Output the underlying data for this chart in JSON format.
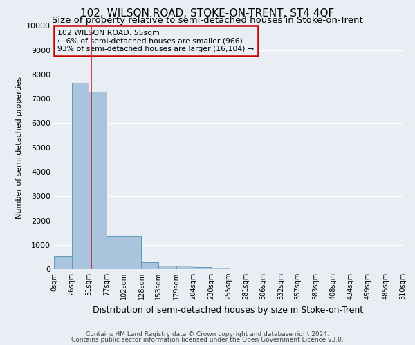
{
  "title": "102, WILSON ROAD, STOKE-ON-TRENT, ST4 4QF",
  "subtitle": "Size of property relative to semi-detached houses in Stoke-on-Trent",
  "xlabel": "Distribution of semi-detached houses by size in Stoke-on-Trent",
  "ylabel": "Number of semi-detached properties",
  "footer1": "Contains HM Land Registry data © Crown copyright and database right 2024.",
  "footer2": "Contains public sector information licensed under the Open Government Licence v3.0.",
  "bin_edges": [
    0,
    26,
    51,
    77,
    102,
    128,
    153,
    179,
    204,
    230,
    255,
    281,
    306,
    332,
    357,
    383,
    408,
    434,
    459,
    485,
    510
  ],
  "bar_heights": [
    550,
    7650,
    7300,
    1350,
    1350,
    280,
    150,
    130,
    80,
    70,
    0,
    0,
    0,
    0,
    0,
    0,
    0,
    0,
    0,
    0
  ],
  "bar_color": "#aac4de",
  "bar_edge_color": "#5a9bbf",
  "property_size": 55,
  "property_line_color": "#cc2222",
  "annotation_text_line1": "102 WILSON ROAD: 55sqm",
  "annotation_text_line2": "← 6% of semi-detached houses are smaller (966)",
  "annotation_text_line3": "93% of semi-detached houses are larger (16,104) →",
  "annotation_box_color": "#cc0000",
  "ylim": [
    0,
    10000
  ],
  "yticks": [
    0,
    1000,
    2000,
    3000,
    4000,
    5000,
    6000,
    7000,
    8000,
    9000,
    10000
  ],
  "bg_color": "#e8eef4",
  "grid_color": "#ffffff",
  "title_fontsize": 11,
  "subtitle_fontsize": 9.5
}
